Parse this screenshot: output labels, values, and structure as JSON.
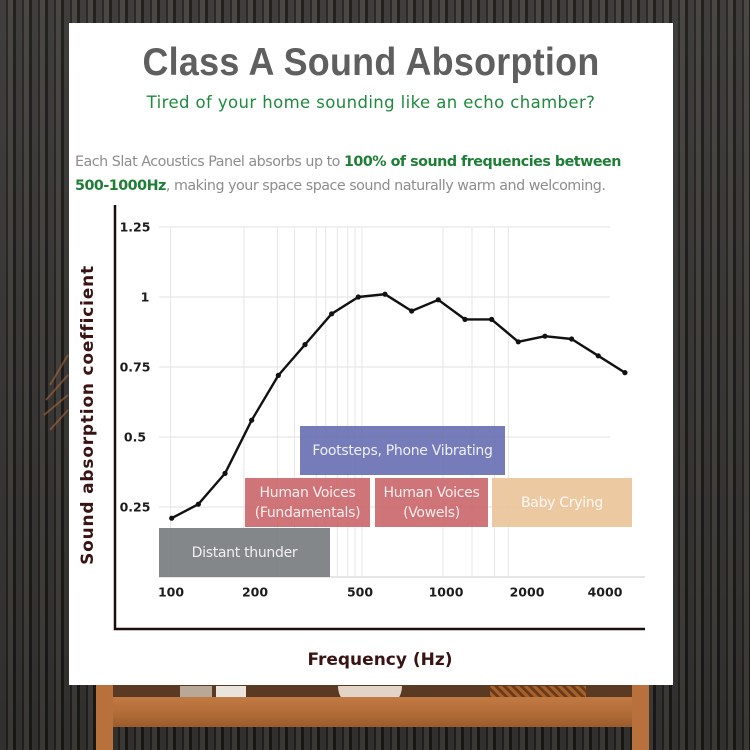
{
  "card": {
    "title": "Class A Sound Absorption",
    "subtitle": "Tired of your home sounding like an echo chamber?",
    "description": {
      "line1_plain": "Each Slat Acoustics Panel absorbs up to ",
      "line1_highlight": "100% of sound frequencies between",
      "line2_highlight": "500-1000Hz",
      "line2_plain": ", making  your space space sound naturally warm and welcoming."
    }
  },
  "colors": {
    "title": "#5f5f5f",
    "accent_green": "#1e8a3c",
    "axis_text": "#3a1414",
    "line": "#111111",
    "grid": "#e6e6e6"
  },
  "chart_data": {
    "type": "line",
    "title": "Class A Sound Absorption",
    "xlabel": "Frequency (Hz)",
    "ylabel": "Sound absorption coefficient",
    "x_scale": "log (1/3-octave bands)",
    "ylim": [
      0,
      1.25
    ],
    "grid": true,
    "legend": "none",
    "x_tick_labels": [
      "100",
      "200",
      "500",
      "1000",
      "2000",
      "4000"
    ],
    "y_tick_labels": [
      "1.25",
      "1",
      "0.75",
      "0.5",
      "0.25"
    ],
    "series": [
      {
        "name": "Sound absorption coefficient",
        "x": [
          100,
          125,
          160,
          200,
          250,
          315,
          400,
          500,
          630,
          800,
          1000,
          1250,
          1600,
          2000,
          2500,
          3150,
          4000,
          5000
        ],
        "values": [
          0.21,
          0.26,
          0.37,
          0.56,
          0.72,
          0.83,
          0.94,
          1.0,
          1.01,
          0.95,
          0.99,
          0.92,
          0.92,
          0.84,
          0.86,
          0.85,
          0.79,
          0.73
        ]
      }
    ],
    "annotations": [
      {
        "label": "Footsteps, Phone Vibrating",
        "color": "#6b73b4",
        "x_from_hz": 280,
        "x_to_hz": 1800,
        "row": 3
      },
      {
        "label": "Human Voices\n(Fundamentals)",
        "color": "#cc6a6e",
        "x_from_hz": 190,
        "x_to_hz": 530,
        "row": 2
      },
      {
        "label": "Human Voices\n(Vowels)",
        "color": "#cc6a6e",
        "x_from_hz": 540,
        "x_to_hz": 1500,
        "row": 2
      },
      {
        "label": "Baby Crying",
        "color": "#ecc59c",
        "x_from_hz": 1550,
        "x_to_hz": 5000,
        "row": 2
      },
      {
        "label": "Distant thunder",
        "color": "#7b7e81",
        "x_from_hz": 90,
        "x_to_hz": 380,
        "row": 1
      }
    ]
  }
}
